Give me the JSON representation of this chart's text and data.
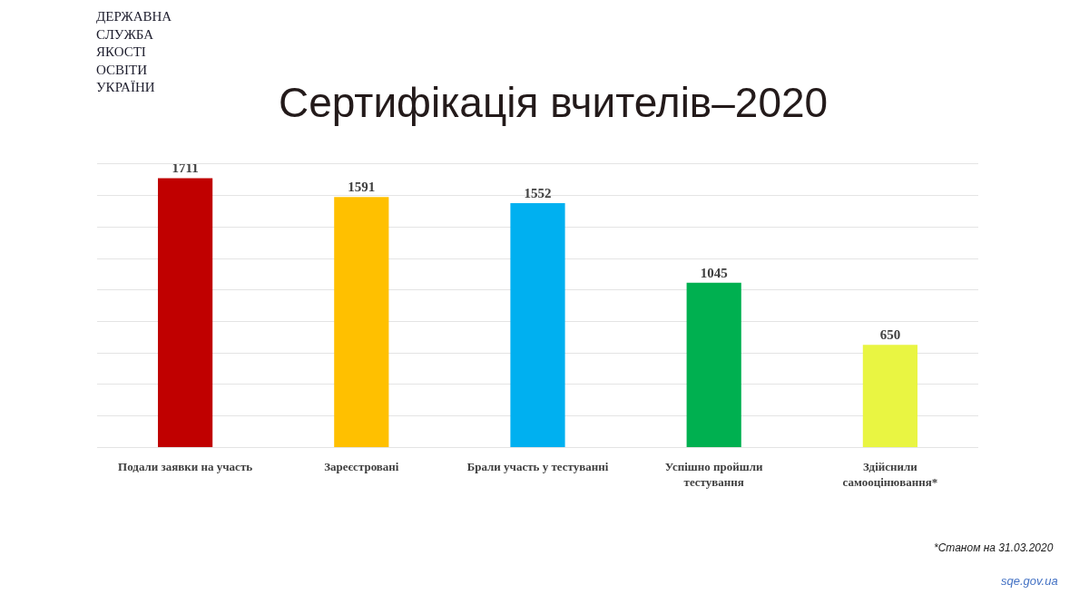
{
  "chart_data": {
    "type": "bar",
    "title": "Сертифікація вчителів–2020",
    "categories": [
      "Подали заявки на участь",
      "Зареєстровані",
      "Брали участь у тестуванні",
      "Успішно пройшли\nтестування",
      "Здійснили\nсамооцінювання*"
    ],
    "values": [
      1711,
      1591,
      1552,
      1045,
      650
    ],
    "colors": [
      "#c00000",
      "#ffc000",
      "#00b0f0",
      "#00b050",
      "#e9f542"
    ],
    "ylim": [
      0,
      1800
    ],
    "yticks": [
      {
        "value": 0,
        "label": null
      },
      {
        "value": 200,
        "label": null
      },
      {
        "value": 400,
        "label": null
      },
      {
        "value": 600,
        "label": null
      },
      {
        "value": 800,
        "label": null
      },
      {
        "value": 1000,
        "label": null
      },
      {
        "value": 1200,
        "label": null
      },
      {
        "value": 1400,
        "label": null
      },
      {
        "value": 1600,
        "label": null
      },
      {
        "value": 1800,
        "label": null
      }
    ],
    "grid": "y",
    "tick_labels": "x",
    "data_labels": true,
    "annotations": [
      "ДЕРЖАВНА\nСЛУЖБА\nЯКОСТІ\nОСВІТИ\nУКРАЇНИ",
      "*Станом на 31.03.2020",
      "sqe.gov.ua"
    ]
  }
}
